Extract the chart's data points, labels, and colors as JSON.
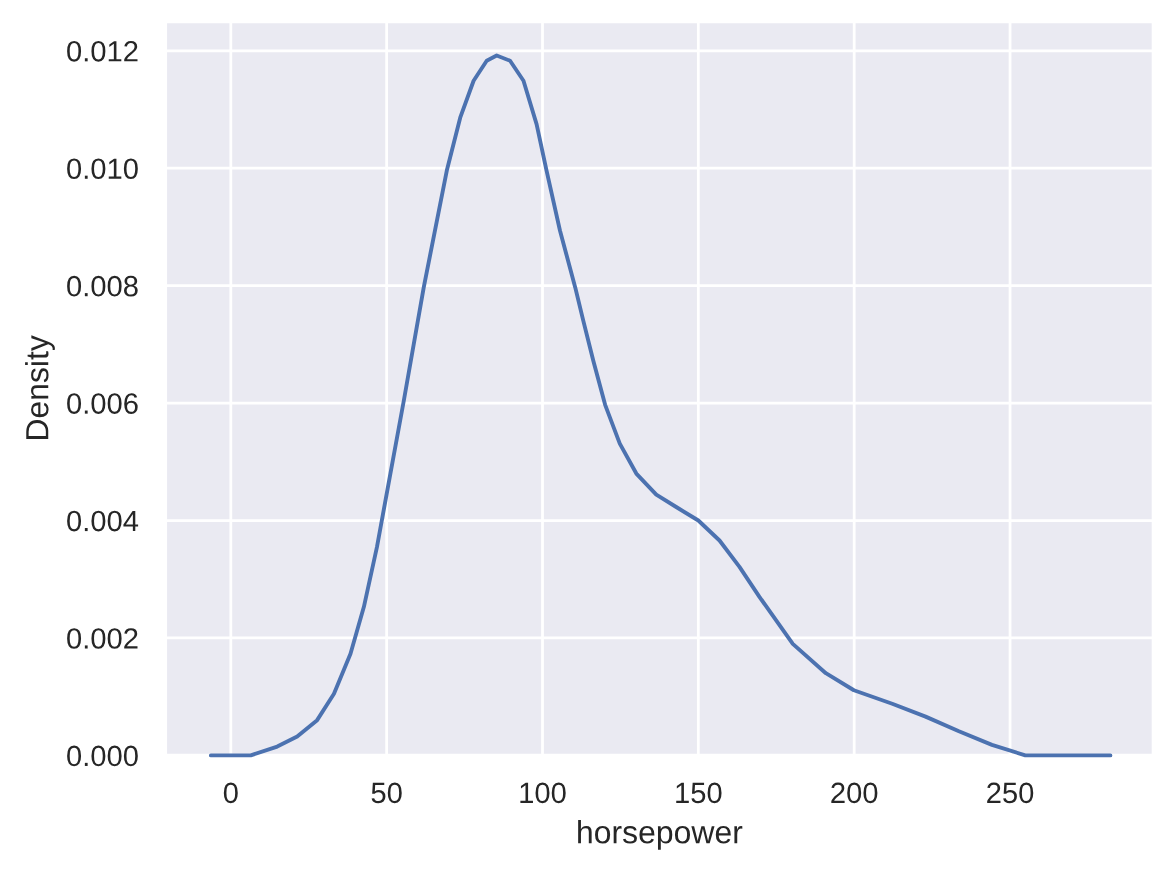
{
  "chart_data": {
    "type": "line",
    "xlabel": "horsepower",
    "ylabel": "Density",
    "x": [
      -6.4,
      6.4,
      14.9,
      21.3,
      27.7,
      33.1,
      38.4,
      42.7,
      46.9,
      51.2,
      55.5,
      61.9,
      69.3,
      73.6,
      77.9,
      82.1,
      85.3,
      89.6,
      93.9,
      98.1,
      101.3,
      105.6,
      110.5,
      113.1,
      116.3,
      120.1,
      124.8,
      130.1,
      136.5,
      142.9,
      150,
      156.8,
      163.2,
      169.6,
      180.3,
      190.9,
      199.9,
      212.2,
      222.9,
      233.6,
      244.2,
      254.9,
      282.2
    ],
    "series": [
      {
        "color": "#4c72b0",
        "values": [
          0,
          0,
          0.00015,
          0.00032,
          0.0006,
          0.00105,
          0.00173,
          0.00253,
          0.00355,
          0.0048,
          0.00604,
          0.00797,
          0.00996,
          0.01086,
          0.01149,
          0.01183,
          0.01192,
          0.01183,
          0.01149,
          0.01075,
          0.00996,
          0.00894,
          0.00797,
          0.0074,
          0.00672,
          0.00597,
          0.00531,
          0.0048,
          0.00444,
          0.00423,
          0.004,
          0.00366,
          0.00321,
          0.0027,
          0.0019,
          0.0014,
          0.00111,
          0.00088,
          0.00066,
          0.00041,
          0.00018,
          0,
          0
        ]
      }
    ],
    "xlim": [
      -21,
      296
    ],
    "xticks": [
      0,
      50,
      100,
      150,
      200,
      250
    ],
    "ylim": [
      0,
      0.0125
    ],
    "yticks": [
      {
        "value": 0,
        "label": "0.000"
      },
      0.002,
      0.004,
      0.006,
      0.008,
      {
        "value": 0.01,
        "label": "0.010"
      },
      0.012
    ],
    "grid": true,
    "marker": "none",
    "line_style": "solid"
  }
}
